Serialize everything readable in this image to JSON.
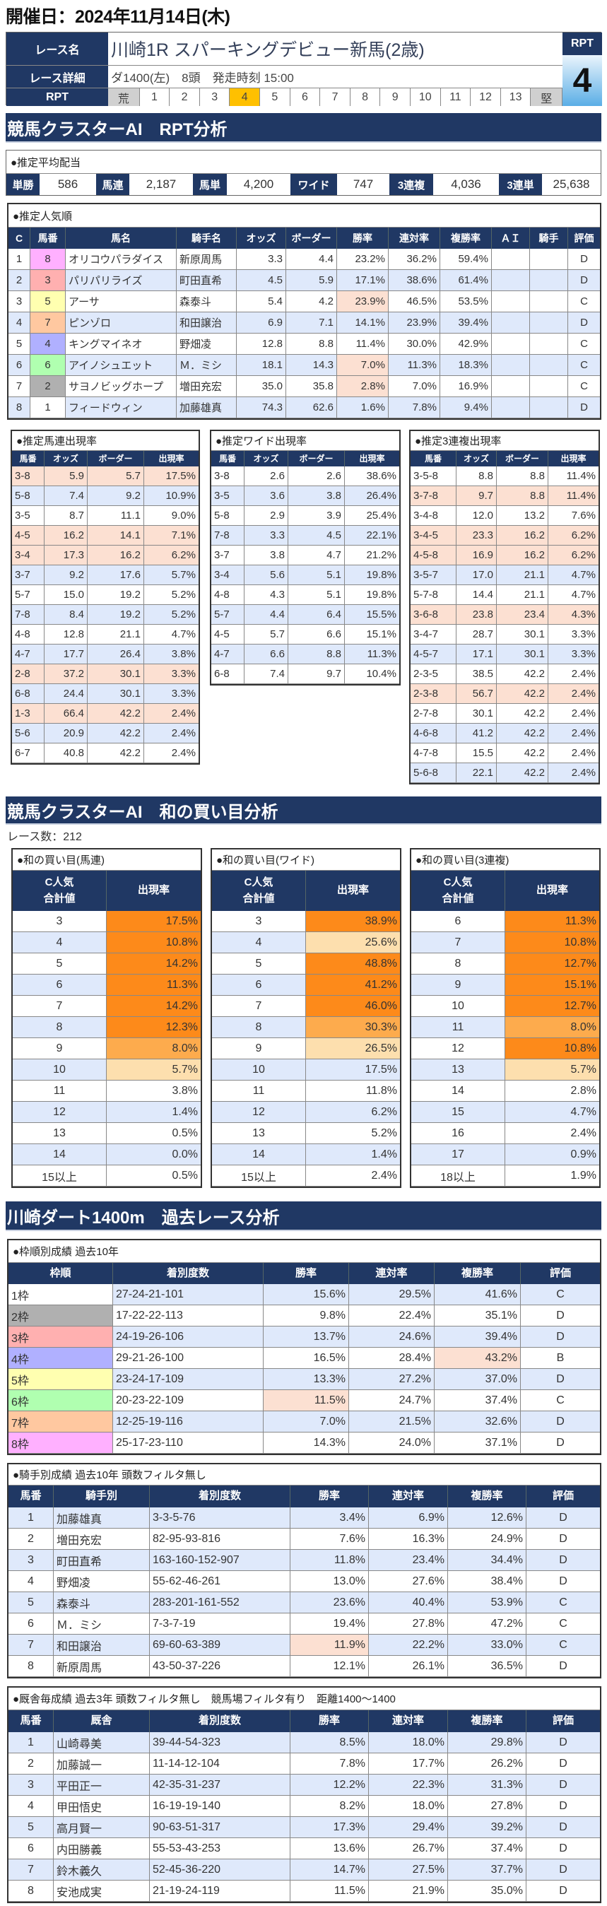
{
  "header": {
    "date_label": "開催日：2024年11月14日(木)"
  },
  "race": {
    "name_label": "レース名",
    "name": "川崎1R スパーキングデビュー新馬(2歳)",
    "detail_label": "レース詳細",
    "detail": "ダ1400(左)　8頭　発走時刻 15:00",
    "rpt_label": "RPT",
    "scale": [
      "荒",
      "1",
      "2",
      "3",
      "4",
      "5",
      "6",
      "7",
      "8",
      "9",
      "10",
      "11",
      "12",
      "13",
      "堅"
    ],
    "selected": "4",
    "rpt_box_label": "RPT",
    "rpt_value": "4"
  },
  "sections": {
    "rpt": "競馬クラスターAI　RPT分析",
    "wa": "競馬クラスターAI　和の買い目分析",
    "past": "川崎ダート1400m　過去レース分析"
  },
  "colors": {
    "navy": "#203864",
    "row_alt": "#dfe9fb",
    "highlight": "#fce0d2",
    "orange": "#fd8a1a",
    "orange_mid": "#fdab4d",
    "orange_light": "#fddfae",
    "selected": "#ffc000"
  },
  "frame_colors": {
    "1": "#ffffff",
    "2": "#b0b0b0",
    "3": "#ffb0b0",
    "4": "#b0b0ff",
    "5": "#ffffb0",
    "6": "#b0ffb0",
    "7": "#ffc8a0",
    "8": "#ffb0ff"
  },
  "payout": {
    "title": "●推定平均配当",
    "items": [
      {
        "label": "単勝",
        "value": "586"
      },
      {
        "label": "馬連",
        "value": "2,187"
      },
      {
        "label": "馬単",
        "value": "4,200"
      },
      {
        "label": "ワイド",
        "value": "747"
      },
      {
        "label": "3連複",
        "value": "4,036"
      },
      {
        "label": "3連単",
        "value": "25,638"
      }
    ]
  },
  "popularity": {
    "title": "●推定人気順",
    "headers": [
      "C",
      "馬番",
      "馬名",
      "騎手名",
      "オッズ",
      "ボーダー",
      "勝率",
      "連対率",
      "複勝率",
      "ＡＩ",
      "騎手",
      "評価"
    ],
    "rows": [
      [
        "1",
        "8",
        "オリコウパラダイス",
        "新原周馬",
        "3.3",
        "4.4",
        "23.2%",
        "36.2%",
        "59.4%",
        "",
        "",
        "D"
      ],
      [
        "2",
        "3",
        "パリパリライズ",
        "町田直希",
        "4.5",
        "5.9",
        "17.1%",
        "38.6%",
        "61.4%",
        "",
        "",
        "D"
      ],
      [
        "3",
        "5",
        "アーサ",
        "森泰斗",
        "5.4",
        "4.2",
        "23.9%",
        "46.5%",
        "53.5%",
        "",
        "",
        "C"
      ],
      [
        "4",
        "7",
        "ピンゾロ",
        "和田譲治",
        "6.9",
        "7.1",
        "14.1%",
        "23.9%",
        "39.4%",
        "",
        "",
        "D"
      ],
      [
        "5",
        "4",
        "キングマイネオ",
        "野畑凌",
        "12.8",
        "8.8",
        "11.4%",
        "30.0%",
        "42.9%",
        "",
        "",
        "C"
      ],
      [
        "6",
        "6",
        "アイノシュエット",
        "Ｍ．ミシ",
        "18.1",
        "14.3",
        "7.0%",
        "11.3%",
        "18.3%",
        "",
        "",
        "C"
      ],
      [
        "7",
        "2",
        "サヨノビッグホープ",
        "増田充宏",
        "35.0",
        "35.8",
        "2.8%",
        "7.0%",
        "16.9%",
        "",
        "",
        "C"
      ],
      [
        "8",
        "1",
        "フィードウィン",
        "加藤雄真",
        "74.3",
        "62.6",
        "1.6%",
        "7.8%",
        "9.4%",
        "",
        "",
        "D"
      ]
    ],
    "hl": [
      [
        2,
        6
      ],
      [
        5,
        6
      ],
      [
        6,
        6
      ]
    ]
  },
  "umaren": {
    "title": "●推定馬連出現率",
    "headers": [
      "馬番",
      "オッズ",
      "ボーダー",
      "出現率"
    ],
    "rows": [
      [
        "3-8",
        "5.9",
        "5.7",
        "17.5%"
      ],
      [
        "5-8",
        "7.4",
        "9.2",
        "10.9%"
      ],
      [
        "3-5",
        "8.7",
        "11.1",
        "9.0%"
      ],
      [
        "4-5",
        "16.2",
        "14.1",
        "7.1%"
      ],
      [
        "3-4",
        "17.3",
        "16.2",
        "6.2%"
      ],
      [
        "3-7",
        "9.2",
        "17.6",
        "5.7%"
      ],
      [
        "5-7",
        "15.0",
        "19.2",
        "5.2%"
      ],
      [
        "7-8",
        "8.4",
        "19.2",
        "5.2%"
      ],
      [
        "4-8",
        "12.8",
        "21.1",
        "4.7%"
      ],
      [
        "4-7",
        "17.7",
        "26.4",
        "3.8%"
      ],
      [
        "2-8",
        "37.2",
        "30.1",
        "3.3%"
      ],
      [
        "6-8",
        "24.4",
        "30.1",
        "3.3%"
      ],
      [
        "1-3",
        "66.4",
        "42.2",
        "2.4%"
      ],
      [
        "5-6",
        "20.9",
        "42.2",
        "2.4%"
      ],
      [
        "6-7",
        "40.8",
        "42.2",
        "2.4%"
      ]
    ],
    "hl_rows": [
      0,
      3,
      4,
      10,
      12
    ]
  },
  "wide": {
    "title": "●推定ワイド出現率",
    "headers": [
      "馬番",
      "オッズ",
      "ボーダー",
      "出現率"
    ],
    "rows": [
      [
        "3-8",
        "2.6",
        "2.6",
        "38.6%"
      ],
      [
        "3-5",
        "3.6",
        "3.8",
        "26.4%"
      ],
      [
        "5-8",
        "2.9",
        "3.9",
        "25.4%"
      ],
      [
        "7-8",
        "3.3",
        "4.5",
        "22.1%"
      ],
      [
        "3-7",
        "3.8",
        "4.7",
        "21.2%"
      ],
      [
        "3-4",
        "5.6",
        "5.1",
        "19.8%"
      ],
      [
        "4-8",
        "4.3",
        "5.1",
        "19.8%"
      ],
      [
        "5-7",
        "4.4",
        "6.4",
        "15.5%"
      ],
      [
        "4-5",
        "5.7",
        "6.6",
        "15.1%"
      ],
      [
        "4-7",
        "6.6",
        "8.8",
        "11.3%"
      ],
      [
        "6-8",
        "7.4",
        "9.7",
        "10.4%"
      ]
    ],
    "hl_rows": []
  },
  "sanrenpuku": {
    "title": "●推定3連複出現率",
    "headers": [
      "馬番",
      "オッズ",
      "ボーダー",
      "出現率"
    ],
    "rows": [
      [
        "3-5-8",
        "8.8",
        "8.8",
        "11.4%"
      ],
      [
        "3-7-8",
        "9.7",
        "8.8",
        "11.4%"
      ],
      [
        "3-4-8",
        "12.0",
        "13.2",
        "7.6%"
      ],
      [
        "3-4-5",
        "23.3",
        "16.2",
        "6.2%"
      ],
      [
        "4-5-8",
        "16.9",
        "16.2",
        "6.2%"
      ],
      [
        "3-5-7",
        "17.0",
        "21.1",
        "4.7%"
      ],
      [
        "5-7-8",
        "14.4",
        "21.1",
        "4.7%"
      ],
      [
        "3-6-8",
        "23.8",
        "23.4",
        "4.3%"
      ],
      [
        "3-4-7",
        "28.7",
        "30.1",
        "3.3%"
      ],
      [
        "4-5-7",
        "17.1",
        "30.1",
        "3.3%"
      ],
      [
        "2-3-5",
        "38.5",
        "42.2",
        "2.4%"
      ],
      [
        "2-3-8",
        "56.7",
        "42.2",
        "2.4%"
      ],
      [
        "2-7-8",
        "30.1",
        "42.2",
        "2.4%"
      ],
      [
        "4-6-8",
        "41.2",
        "42.2",
        "2.4%"
      ],
      [
        "4-7-8",
        "15.5",
        "42.2",
        "2.4%"
      ],
      [
        "5-6-8",
        "22.1",
        "42.2",
        "2.4%"
      ]
    ],
    "hl_rows": [
      1,
      3,
      4,
      7,
      11
    ]
  },
  "wa": {
    "race_count": "レース数：212",
    "umaren": {
      "title": "●和の買い目(馬連)",
      "headers": [
        "C人気\n合計値",
        "出現率"
      ],
      "rows": [
        [
          "3",
          "17.5%"
        ],
        [
          "4",
          "10.8%"
        ],
        [
          "5",
          "14.2%"
        ],
        [
          "6",
          "11.3%"
        ],
        [
          "7",
          "14.2%"
        ],
        [
          "8",
          "12.3%"
        ],
        [
          "9",
          "8.0%"
        ],
        [
          "10",
          "5.7%"
        ],
        [
          "11",
          "3.8%"
        ],
        [
          "12",
          "1.4%"
        ],
        [
          "13",
          "0.5%"
        ],
        [
          "14",
          "0.0%"
        ],
        [
          "15以上",
          "0.5%"
        ]
      ],
      "levels": [
        "o",
        "o",
        "o",
        "o",
        "o",
        "o",
        "m",
        "l",
        "",
        "",
        "",
        "",
        ""
      ]
    },
    "wide": {
      "title": "●和の買い目(ワイド)",
      "headers": [
        "C人気\n合計値",
        "出現率"
      ],
      "rows": [
        [
          "3",
          "38.9%"
        ],
        [
          "4",
          "25.6%"
        ],
        [
          "5",
          "48.8%"
        ],
        [
          "6",
          "41.2%"
        ],
        [
          "7",
          "46.0%"
        ],
        [
          "8",
          "30.3%"
        ],
        [
          "9",
          "26.5%"
        ],
        [
          "10",
          "17.5%"
        ],
        [
          "11",
          "11.8%"
        ],
        [
          "12",
          "6.2%"
        ],
        [
          "13",
          "5.2%"
        ],
        [
          "14",
          "1.4%"
        ],
        [
          "15以上",
          "2.4%"
        ]
      ],
      "levels": [
        "o",
        "l",
        "o",
        "o",
        "o",
        "m",
        "l",
        "",
        "",
        "",
        "",
        "",
        ""
      ]
    },
    "sanrenpuku": {
      "title": "●和の買い目(3連複)",
      "headers": [
        "C人気\n合計値",
        "出現率"
      ],
      "rows": [
        [
          "6",
          "11.3%"
        ],
        [
          "7",
          "10.8%"
        ],
        [
          "8",
          "12.7%"
        ],
        [
          "9",
          "15.1%"
        ],
        [
          "10",
          "12.7%"
        ],
        [
          "11",
          "8.0%"
        ],
        [
          "12",
          "10.8%"
        ],
        [
          "13",
          "5.7%"
        ],
        [
          "14",
          "2.8%"
        ],
        [
          "15",
          "4.7%"
        ],
        [
          "16",
          "2.4%"
        ],
        [
          "17",
          "0.9%"
        ],
        [
          "18以上",
          "1.9%"
        ]
      ],
      "levels": [
        "o",
        "o",
        "o",
        "o",
        "o",
        "m",
        "o",
        "l",
        "",
        "",
        "",
        "",
        ""
      ]
    }
  },
  "frame": {
    "title": "●枠順別成績 過去10年",
    "headers": [
      "枠順",
      "着別度数",
      "勝率",
      "連対率",
      "複勝率",
      "評価"
    ],
    "rows": [
      [
        "1枠",
        "27-24-21-101",
        "15.6%",
        "29.5%",
        "41.6%",
        "C"
      ],
      [
        "2枠",
        "17-22-22-113",
        "9.8%",
        "22.4%",
        "35.1%",
        "D"
      ],
      [
        "3枠",
        "24-19-26-106",
        "13.7%",
        "24.6%",
        "39.4%",
        "D"
      ],
      [
        "4枠",
        "29-21-26-100",
        "16.5%",
        "28.4%",
        "43.2%",
        "B"
      ],
      [
        "5枠",
        "23-24-17-109",
        "13.3%",
        "27.2%",
        "37.0%",
        "D"
      ],
      [
        "6枠",
        "20-23-22-109",
        "11.5%",
        "24.7%",
        "37.4%",
        "C"
      ],
      [
        "7枠",
        "12-25-19-116",
        "7.0%",
        "21.5%",
        "32.6%",
        "D"
      ],
      [
        "8枠",
        "25-17-23-110",
        "14.3%",
        "24.0%",
        "37.1%",
        "D"
      ]
    ],
    "hl": [
      [
        3,
        4
      ],
      [
        5,
        2
      ]
    ]
  },
  "jockey": {
    "title": "●騎手別成績 過去10年 頭数フィルタ無し",
    "headers": [
      "馬番",
      "騎手別",
      "着別度数",
      "勝率",
      "連対率",
      "複勝率",
      "評価"
    ],
    "rows": [
      [
        "1",
        "加藤雄真",
        "3-3-5-76",
        "3.4%",
        "6.9%",
        "12.6%",
        "D"
      ],
      [
        "2",
        "増田充宏",
        "82-95-93-816",
        "7.6%",
        "16.3%",
        "24.9%",
        "D"
      ],
      [
        "3",
        "町田直希",
        "163-160-152-907",
        "11.8%",
        "23.4%",
        "34.4%",
        "D"
      ],
      [
        "4",
        "野畑凌",
        "55-62-46-261",
        "13.0%",
        "27.6%",
        "38.4%",
        "D"
      ],
      [
        "5",
        "森泰斗",
        "283-201-161-552",
        "23.6%",
        "40.4%",
        "53.9%",
        "C"
      ],
      [
        "6",
        "Ｍ．ミシ",
        "7-3-7-19",
        "19.4%",
        "27.8%",
        "47.2%",
        "C"
      ],
      [
        "7",
        "和田譲治",
        "69-60-63-389",
        "11.9%",
        "22.2%",
        "33.0%",
        "C"
      ],
      [
        "8",
        "新原周馬",
        "43-50-37-226",
        "12.1%",
        "26.1%",
        "36.5%",
        "D"
      ]
    ],
    "hl": [
      [
        6,
        3
      ]
    ]
  },
  "stable": {
    "title": "●厩舎毎成績 過去3年 頭数フィルタ無し　競馬場フィルタ有り　距離1400～1400",
    "headers": [
      "馬番",
      "厩舎",
      "着別度数",
      "勝率",
      "連対率",
      "複勝率",
      "評価"
    ],
    "rows": [
      [
        "1",
        "山崎尋美",
        "39-44-54-323",
        "8.5%",
        "18.0%",
        "29.8%",
        "D"
      ],
      [
        "2",
        "加藤誠一",
        "11-14-12-104",
        "7.8%",
        "17.7%",
        "26.2%",
        "D"
      ],
      [
        "3",
        "平田正一",
        "42-35-31-237",
        "12.2%",
        "22.3%",
        "31.3%",
        "D"
      ],
      [
        "4",
        "甲田悟史",
        "16-19-19-140",
        "8.2%",
        "18.0%",
        "27.8%",
        "D"
      ],
      [
        "5",
        "高月賢一",
        "90-63-51-317",
        "17.3%",
        "29.4%",
        "39.2%",
        "D"
      ],
      [
        "6",
        "内田勝義",
        "55-53-43-253",
        "13.6%",
        "26.7%",
        "37.4%",
        "D"
      ],
      [
        "7",
        "鈴木義久",
        "52-45-36-220",
        "14.7%",
        "27.5%",
        "37.7%",
        "D"
      ],
      [
        "8",
        "安池成実",
        "21-19-24-119",
        "11.5%",
        "21.9%",
        "35.0%",
        "D"
      ]
    ],
    "hl": []
  }
}
